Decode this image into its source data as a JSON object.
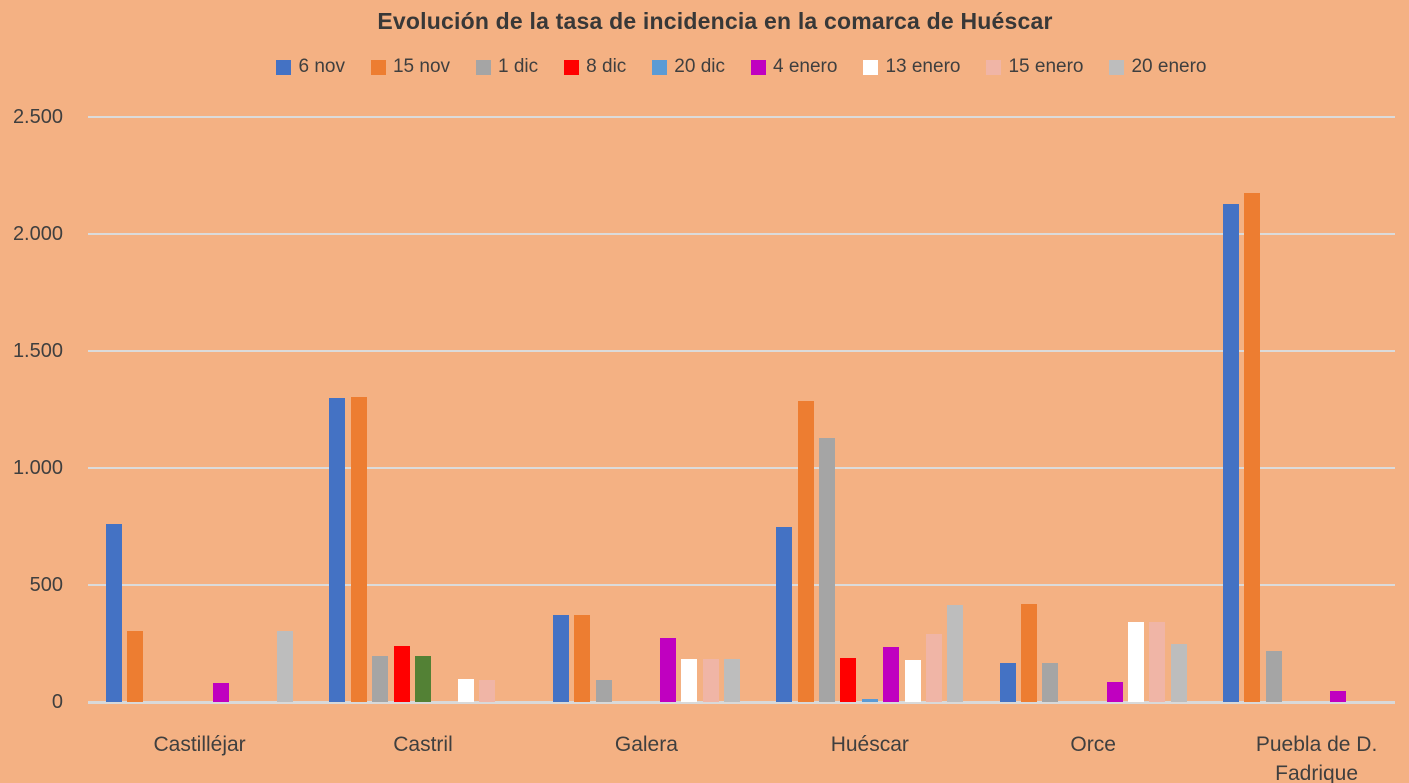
{
  "colors": {
    "background": "#F4B183",
    "text": "#3F3F3F",
    "title_text": "#383838",
    "gridline": "#DBDBDB",
    "axis_line": "#D9D9D9"
  },
  "chart_data": {
    "type": "bar",
    "title": "Evolución de la tasa de incidencia en la comarca de Huéscar",
    "xlabel": "",
    "ylabel": "",
    "grid": true,
    "legend_position": "top",
    "categories": [
      "Castilléjar",
      "Castril",
      "Galera",
      "Huéscar",
      "Orce",
      "Puebla de D. Fadrique"
    ],
    "series": [
      {
        "name": "6 nov",
        "color": "#4472C4",
        "values": [
          760,
          1300,
          370,
          750,
          165,
          2130
        ]
      },
      {
        "name": "15 nov",
        "color": "#ED7D31",
        "values": [
          305,
          1305,
          370,
          1285,
          420,
          2175
        ]
      },
      {
        "name": "1 dic",
        "color": "#A5A5A5",
        "values": [
          0,
          195,
          95,
          1130,
          165,
          220
        ]
      },
      {
        "name": "8 dic",
        "color": "#FF0000",
        "values": [
          0,
          240,
          0,
          190,
          0,
          0
        ]
      },
      {
        "name": "20 dic",
        "color": "#5B9BD5",
        "values": [
          0,
          195,
          0,
          15,
          0,
          0
        ]
      },
      {
        "name": "4 enero",
        "color": "#C000C0",
        "values": [
          80,
          0,
          275,
          235,
          85,
          45
        ]
      },
      {
        "name": "13 enero",
        "color": "#FFFFFF",
        "values": [
          0,
          100,
          185,
          180,
          340,
          0
        ]
      },
      {
        "name": "15 enero",
        "color": "#F0B5A6",
        "values": [
          0,
          95,
          185,
          290,
          340,
          0
        ]
      },
      {
        "name": "20 enero",
        "color": "#BDBDBD",
        "values": [
          305,
          0,
          185,
          415,
          250,
          0
        ]
      }
    ],
    "color_overrides": [
      {
        "category": "Castril",
        "series": "20 dic",
        "color": "#538135"
      }
    ],
    "y_axis": {
      "min": 0,
      "max": 2500,
      "tick_interval": 500,
      "tick_labels": [
        "0",
        "500",
        "1.000",
        "1.500",
        "2.000",
        "2.500"
      ]
    }
  }
}
